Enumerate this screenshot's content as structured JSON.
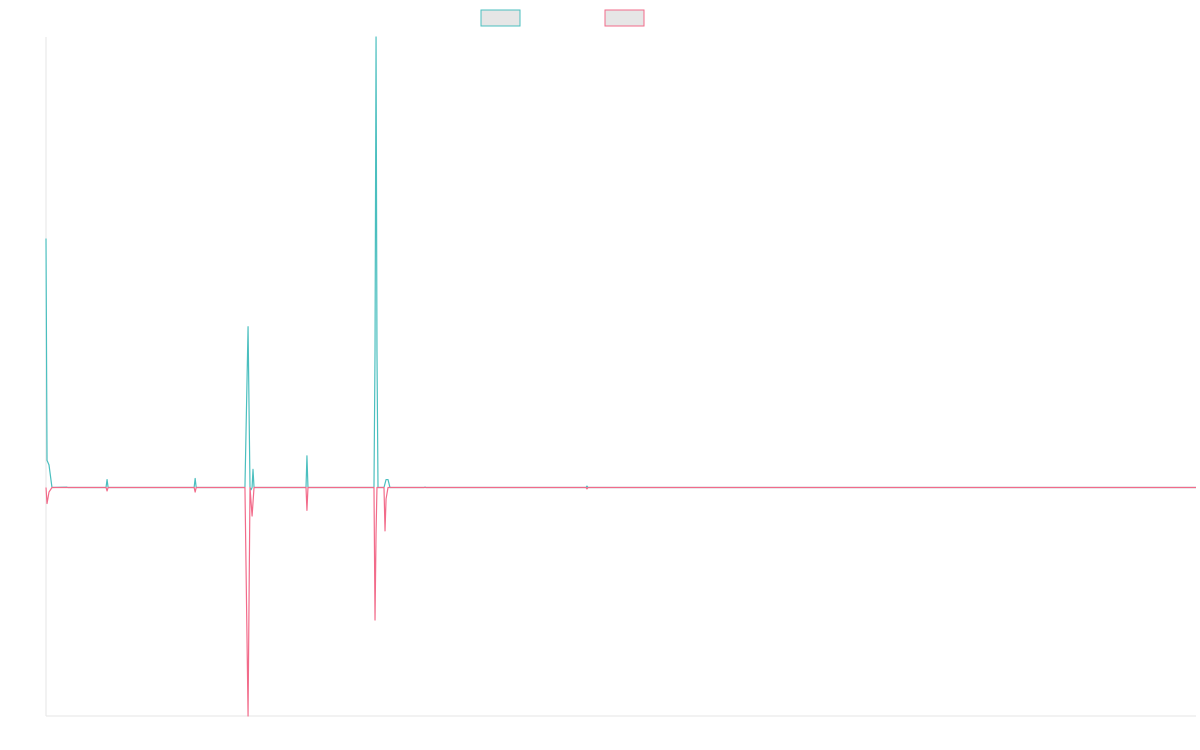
{
  "chart_data": {
    "type": "line",
    "title": "",
    "xlabel": "",
    "ylabel": "",
    "grid": false,
    "legend": "top-center",
    "xlim": [
      0,
      1
    ],
    "ylim": [
      -1,
      1.99
    ],
    "series": [
      {
        "color": "#4bbfbf",
        "legend_fill": "#e6e6e6",
        "points": [
          [
            0.0,
            1.1
          ],
          [
            0.0009,
            0.12
          ],
          [
            0.0026,
            0.1
          ],
          [
            0.0052,
            0.0
          ],
          [
            0.018,
            0.002
          ],
          [
            0.019,
            0.0
          ],
          [
            0.0522,
            0.0
          ],
          [
            0.0531,
            0.035
          ],
          [
            0.054,
            0.0
          ],
          [
            0.1288,
            0.0
          ],
          [
            0.1297,
            0.04
          ],
          [
            0.1306,
            0.0
          ],
          [
            0.173,
            0.0
          ],
          [
            0.1757,
            0.71
          ],
          [
            0.1774,
            0.0
          ],
          [
            0.1783,
            -0.01
          ],
          [
            0.1792,
            0.0
          ],
          [
            0.18,
            0.08
          ],
          [
            0.1809,
            0.0
          ],
          [
            0.2165,
            0.0
          ],
          [
            0.2261,
            0.0
          ],
          [
            0.2269,
            0.14
          ],
          [
            0.2278,
            0.0
          ],
          [
            0.2852,
            0.0
          ],
          [
            0.2861,
            0.6
          ],
          [
            0.287,
            1.99
          ],
          [
            0.2878,
            0.6
          ],
          [
            0.2887,
            0.0
          ],
          [
            0.2939,
            0.0
          ],
          [
            0.2957,
            0.035
          ],
          [
            0.2974,
            0.035
          ],
          [
            0.2991,
            0.0
          ],
          [
            0.3287,
            0.0
          ],
          [
            0.3296,
            0.002
          ],
          [
            0.3304,
            0.0
          ],
          [
            0.4696,
            0.0
          ],
          [
            0.4704,
            0.006
          ],
          [
            0.4713,
            0.0
          ],
          [
            1.0,
            0.0
          ]
        ]
      },
      {
        "color": "#f26b8a",
        "legend_fill": "#e6e6e6",
        "points": [
          [
            0.0,
            0.0
          ],
          [
            0.0009,
            -0.07
          ],
          [
            0.0026,
            -0.02
          ],
          [
            0.0052,
            0.0
          ],
          [
            0.0522,
            0.0
          ],
          [
            0.0531,
            -0.015
          ],
          [
            0.054,
            0.0
          ],
          [
            0.1288,
            0.0
          ],
          [
            0.1297,
            -0.02
          ],
          [
            0.1306,
            0.0
          ],
          [
            0.173,
            0.0
          ],
          [
            0.1757,
            -1.0
          ],
          [
            0.1774,
            0.0
          ],
          [
            0.1792,
            -0.125
          ],
          [
            0.1809,
            0.0
          ],
          [
            0.2261,
            0.0
          ],
          [
            0.2269,
            -0.1
          ],
          [
            0.2278,
            0.0
          ],
          [
            0.2852,
            0.0
          ],
          [
            0.2861,
            -0.58
          ],
          [
            0.287,
            -0.2
          ],
          [
            0.2878,
            0.0
          ],
          [
            0.2939,
            0.0
          ],
          [
            0.2948,
            -0.19
          ],
          [
            0.2957,
            -0.05
          ],
          [
            0.2974,
            0.0
          ],
          [
            0.4696,
            0.0
          ],
          [
            0.4704,
            -0.006
          ],
          [
            0.4713,
            0.0
          ],
          [
            1.0,
            0.0
          ]
        ]
      }
    ]
  }
}
